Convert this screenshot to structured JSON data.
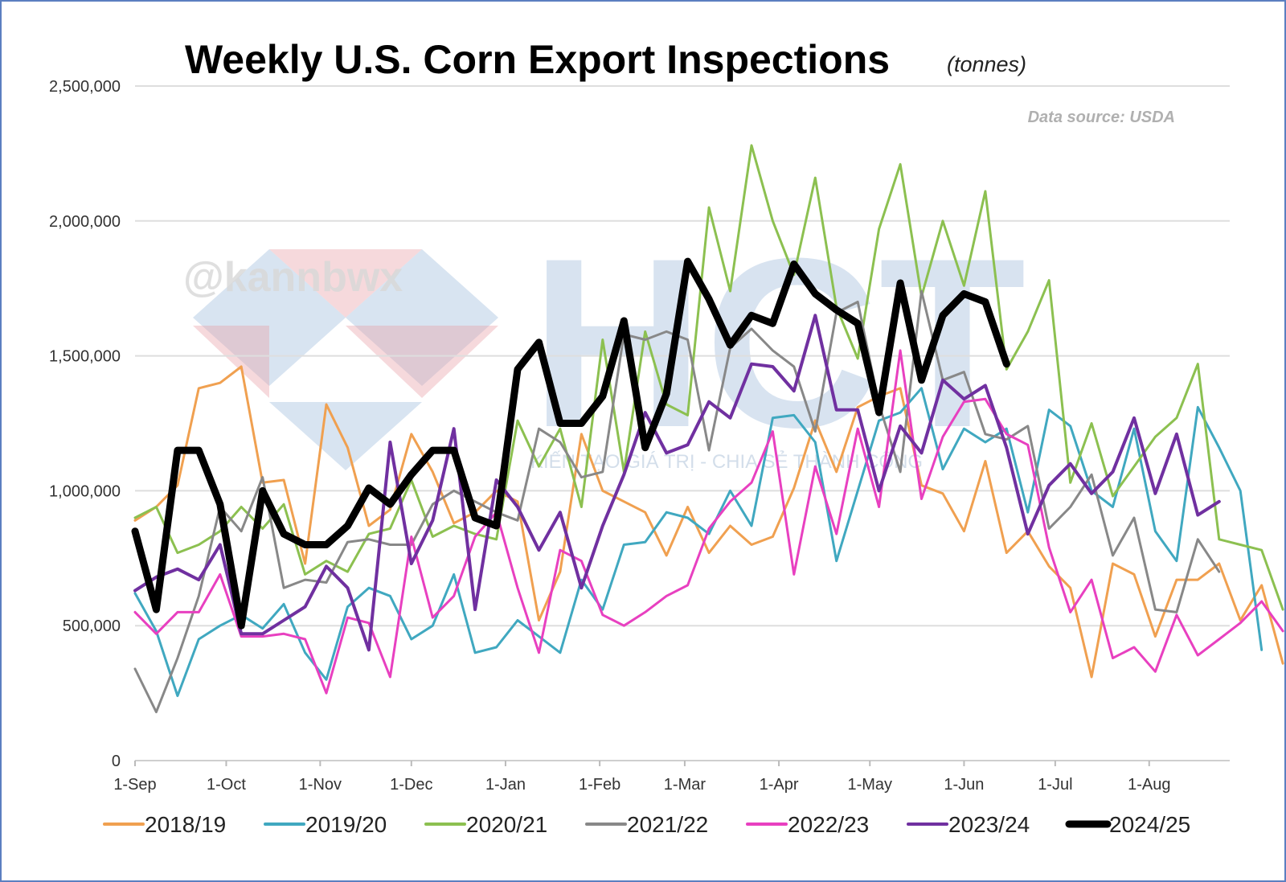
{
  "chart_data": {
    "type": "line",
    "title": "Weekly U.S. Corn Export Inspections",
    "subtitle": "(tonnes)",
    "source_note": "Data source: USDA",
    "watermark": {
      "handle": "@kannbwx",
      "logo": "HCT",
      "tagline": "KIẾN TẠO GIÁ TRỊ - CHIA SẺ THÀNH CÔNG"
    },
    "x_tick_labels": [
      "1-Sep",
      "1-Oct",
      "1-Nov",
      "1-Dec",
      "1-Jan",
      "1-Feb",
      "1-Mar",
      "1-Apr",
      "1-May",
      "1-Jun",
      "1-Jul",
      "1-Aug"
    ],
    "x_tick_weeks": [
      0,
      4.29,
      8.71,
      13,
      17.43,
      21.86,
      25.86,
      30.29,
      34.57,
      39,
      43.29,
      47.71
    ],
    "xlim": [
      0,
      51.5
    ],
    "y_ticks": [
      0,
      500000,
      1000000,
      1500000,
      2000000,
      2500000
    ],
    "y_tick_labels": [
      "0",
      "500,000",
      "1,000,000",
      "1,500,000",
      "2,000,000",
      "2,500,000"
    ],
    "ylim": [
      0,
      2500000
    ],
    "grid": "horizontal",
    "legend_position": "bottom",
    "series": [
      {
        "name": "2018/19",
        "color": "#f0a050",
        "width": 3,
        "values": [
          890000,
          940000,
          1020000,
          1380000,
          1400000,
          1460000,
          1030000,
          1040000,
          730000,
          1320000,
          1160000,
          870000,
          930000,
          1210000,
          1070000,
          880000,
          920000,
          1000000,
          960000,
          520000,
          700000,
          1210000,
          1000000,
          960000,
          920000,
          760000,
          940000,
          770000,
          870000,
          800000,
          830000,
          1010000,
          1260000,
          1070000,
          1310000,
          1350000,
          1380000,
          1020000,
          990000,
          850000,
          1110000,
          770000,
          850000,
          720000,
          640000,
          310000,
          730000,
          690000,
          460000,
          670000,
          670000,
          730000,
          520000,
          650000,
          360000
        ]
      },
      {
        "name": "2019/20",
        "color": "#40a8c0",
        "width": 3,
        "values": [
          620000,
          480000,
          240000,
          450000,
          500000,
          540000,
          490000,
          580000,
          400000,
          300000,
          570000,
          640000,
          610000,
          450000,
          500000,
          690000,
          400000,
          420000,
          520000,
          460000,
          400000,
          670000,
          560000,
          800000,
          810000,
          920000,
          900000,
          840000,
          1000000,
          870000,
          1270000,
          1280000,
          1180000,
          740000,
          1000000,
          1260000,
          1290000,
          1380000,
          1080000,
          1230000,
          1180000,
          1230000,
          920000,
          1300000,
          1240000,
          1000000,
          940000,
          1230000,
          850000,
          740000,
          1310000,
          1160000,
          1000000,
          410000
        ]
      },
      {
        "name": "2020/21",
        "color": "#8cc050",
        "width": 3,
        "values": [
          900000,
          940000,
          770000,
          800000,
          850000,
          940000,
          860000,
          950000,
          690000,
          740000,
          700000,
          840000,
          860000,
          1040000,
          830000,
          870000,
          840000,
          820000,
          1260000,
          1090000,
          1230000,
          940000,
          1560000,
          1070000,
          1590000,
          1320000,
          1280000,
          2050000,
          1740000,
          2280000,
          2000000,
          1800000,
          2160000,
          1680000,
          1490000,
          1970000,
          2210000,
          1720000,
          2000000,
          1760000,
          2110000,
          1450000,
          1590000,
          1780000,
          1030000,
          1250000,
          980000,
          1090000,
          1200000,
          1270000,
          1470000,
          820000,
          800000,
          780000,
          560000
        ]
      },
      {
        "name": "2021/22",
        "color": "#888888",
        "width": 3,
        "values": [
          340000,
          180000,
          380000,
          610000,
          940000,
          850000,
          1050000,
          640000,
          670000,
          660000,
          810000,
          820000,
          800000,
          800000,
          950000,
          1000000,
          960000,
          920000,
          890000,
          1230000,
          1180000,
          1050000,
          1070000,
          1580000,
          1560000,
          1590000,
          1560000,
          1150000,
          1530000,
          1600000,
          1520000,
          1460000,
          1220000,
          1660000,
          1700000,
          1320000,
          1070000,
          1740000,
          1410000,
          1440000,
          1210000,
          1190000,
          1240000,
          860000,
          940000,
          1060000,
          760000,
          900000,
          560000,
          550000,
          820000,
          700000
        ]
      },
      {
        "name": "2022/23",
        "color": "#e840c0",
        "width": 3,
        "values": [
          550000,
          470000,
          550000,
          550000,
          690000,
          460000,
          460000,
          470000,
          450000,
          250000,
          530000,
          510000,
          310000,
          830000,
          530000,
          610000,
          830000,
          920000,
          640000,
          400000,
          780000,
          740000,
          540000,
          500000,
          550000,
          610000,
          650000,
          860000,
          960000,
          1030000,
          1220000,
          690000,
          1090000,
          840000,
          1230000,
          940000,
          1520000,
          970000,
          1200000,
          1330000,
          1340000,
          1210000,
          1170000,
          790000,
          550000,
          670000,
          380000,
          420000,
          330000,
          540000,
          390000,
          450000,
          510000,
          590000,
          480000
        ]
      },
      {
        "name": "2023/24",
        "color": "#7030a0",
        "width": 4,
        "values": [
          630000,
          680000,
          710000,
          670000,
          800000,
          470000,
          470000,
          520000,
          570000,
          720000,
          640000,
          410000,
          1180000,
          730000,
          890000,
          1230000,
          560000,
          1040000,
          940000,
          780000,
          920000,
          640000,
          870000,
          1060000,
          1290000,
          1140000,
          1170000,
          1330000,
          1270000,
          1470000,
          1460000,
          1370000,
          1650000,
          1300000,
          1300000,
          1000000,
          1240000,
          1140000,
          1410000,
          1340000,
          1390000,
          1160000,
          840000,
          1020000,
          1100000,
          990000,
          1070000,
          1270000,
          990000,
          1210000,
          910000,
          960000
        ]
      },
      {
        "name": "2024/25",
        "color": "#000000",
        "width": 9,
        "values": [
          850000,
          560000,
          1150000,
          1150000,
          950000,
          500000,
          1000000,
          840000,
          800000,
          800000,
          870000,
          1010000,
          950000,
          1060000,
          1150000,
          1150000,
          900000,
          870000,
          1450000,
          1550000,
          1250000,
          1250000,
          1350000,
          1630000,
          1160000,
          1360000,
          1850000,
          1710000,
          1540000,
          1650000,
          1620000,
          1840000,
          1730000,
          1670000,
          1620000,
          1290000,
          1770000,
          1410000,
          1650000,
          1730000,
          1700000,
          1470000
        ]
      }
    ]
  }
}
